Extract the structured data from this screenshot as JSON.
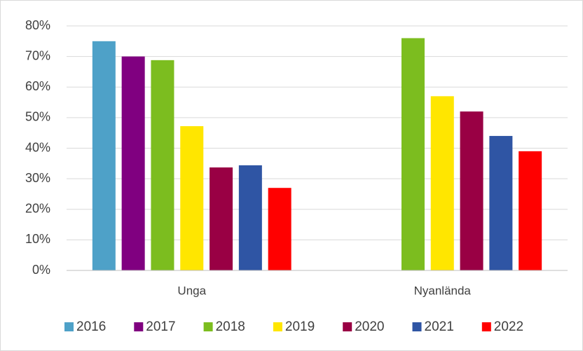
{
  "chart_data": {
    "type": "bar",
    "categories": [
      "Unga",
      "Nyanlända"
    ],
    "series": [
      {
        "name": "2016",
        "color": "#4ea1c8",
        "values": [
          75,
          null
        ]
      },
      {
        "name": "2017",
        "color": "#800080",
        "values": [
          70,
          null
        ]
      },
      {
        "name": "2018",
        "color": "#7cbd1f",
        "values": [
          68.8,
          76
        ]
      },
      {
        "name": "2019",
        "color": "#ffe600",
        "values": [
          47.2,
          57
        ]
      },
      {
        "name": "2020",
        "color": "#990044",
        "values": [
          33.7,
          52
        ]
      },
      {
        "name": "2021",
        "color": "#2f55a4",
        "values": [
          34.4,
          44
        ]
      },
      {
        "name": "2022",
        "color": "#ff0000",
        "values": [
          27,
          39
        ]
      }
    ],
    "ylim": [
      0,
      80
    ],
    "yticks": [
      {
        "value": 0,
        "label": "0%"
      },
      {
        "value": 10,
        "label": "10%"
      },
      {
        "value": 20,
        "label": "20%"
      },
      {
        "value": 30,
        "label": "30%"
      },
      {
        "value": 40,
        "label": "40%"
      },
      {
        "value": 50,
        "label": "50%"
      },
      {
        "value": 60,
        "label": "60%"
      },
      {
        "value": 70,
        "label": "70%"
      },
      {
        "value": 80,
        "label": "80%"
      }
    ],
    "grid": true,
    "legend": "bottom"
  }
}
